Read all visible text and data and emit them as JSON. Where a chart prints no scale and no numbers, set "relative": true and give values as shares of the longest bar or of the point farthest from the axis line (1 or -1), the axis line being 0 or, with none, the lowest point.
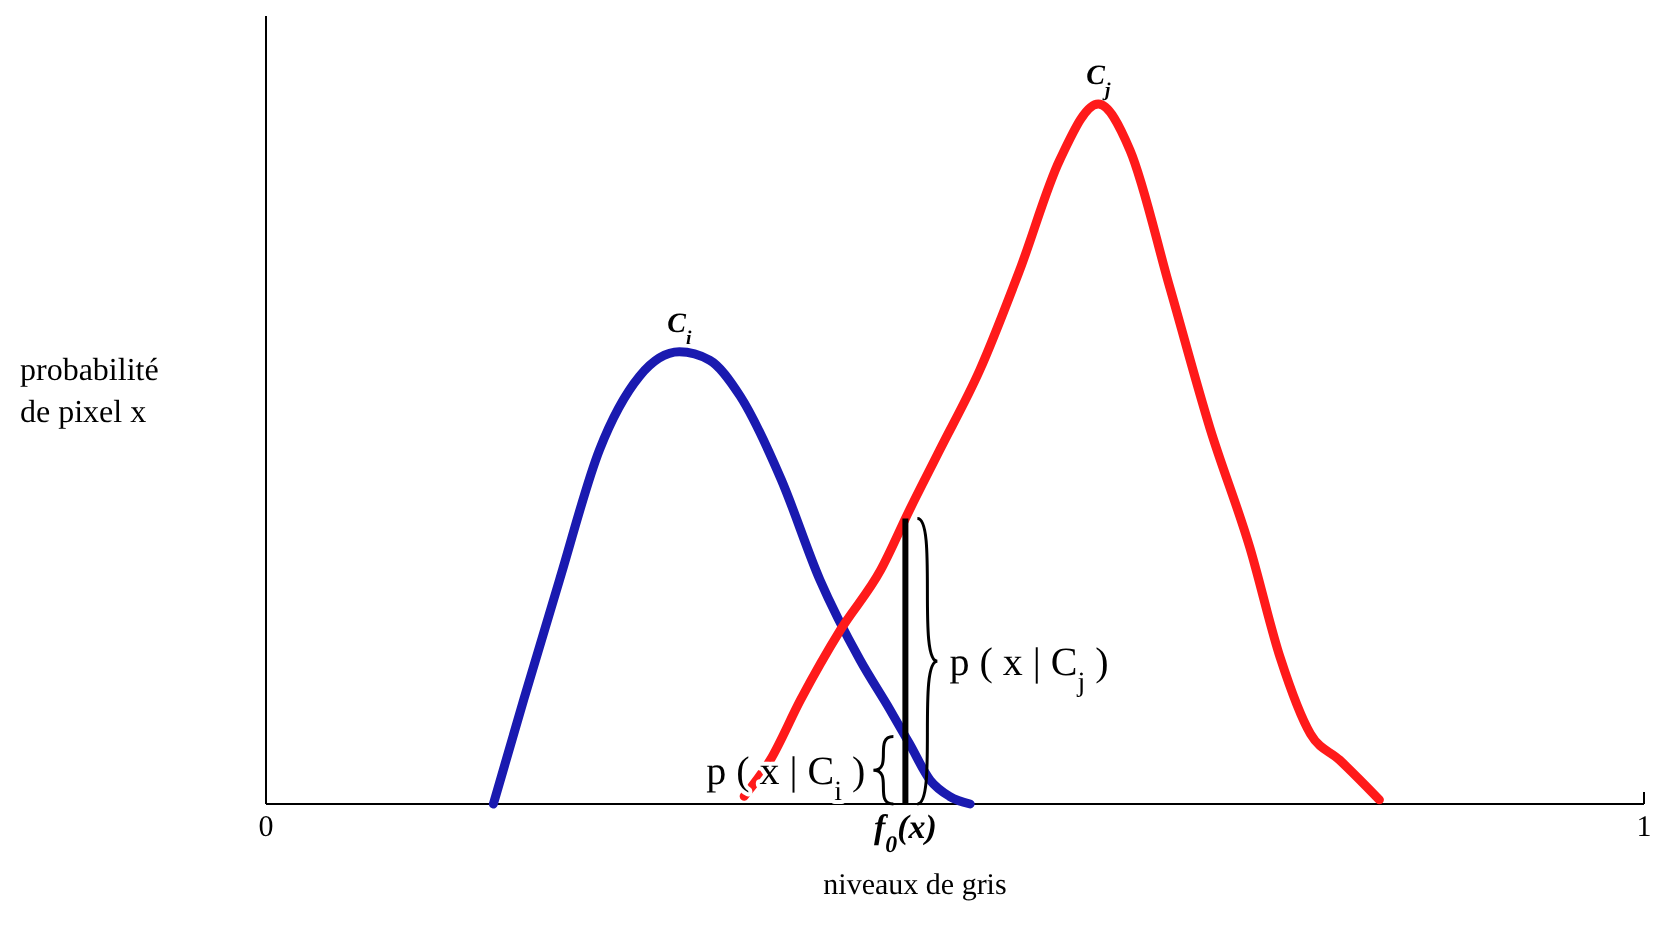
{
  "chart_data": {
    "type": "line",
    "relative": true,
    "xlabel": "niveaux de gris",
    "ylabel": "probabilité de pixel x",
    "xlim": [
      0,
      1
    ],
    "xticks": [
      0,
      1
    ],
    "grid": false,
    "marker": "none",
    "line_style": "solid",
    "series": [
      {
        "name": "C$_{i}$",
        "color": "#1a1ab0",
        "x": [
          0.165,
          0.187,
          0.213,
          0.242,
          0.271,
          0.3,
          0.322,
          0.344,
          0.374,
          0.402,
          0.431,
          0.453,
          0.467,
          0.482,
          0.496,
          0.511
        ],
        "values": [
          0,
          0.149,
          0.32,
          0.506,
          0.611,
          0.646,
          0.634,
          0.583,
          0.463,
          0.32,
          0.206,
          0.134,
          0.086,
          0.034,
          0.011,
          0
        ]
      },
      {
        "name": "C$_{j}$",
        "color": "#ff1a1a",
        "x": [
          0.347,
          0.366,
          0.388,
          0.417,
          0.446,
          0.467,
          0.489,
          0.518,
          0.547,
          0.576,
          0.604,
          0.627,
          0.656,
          0.685,
          0.714,
          0.736,
          0.758,
          0.779,
          0.808
        ],
        "values": [
          0.011,
          0.063,
          0.149,
          0.249,
          0.334,
          0.42,
          0.506,
          0.62,
          0.763,
          0.92,
          1,
          0.934,
          0.737,
          0.537,
          0.366,
          0.209,
          0.1,
          0.063,
          0.006
        ]
      }
    ],
    "ref_lines": [
      {
        "axis": "x",
        "value": 0.464,
        "label": "f$_{0}$(x)",
        "color": "#000000"
      }
    ],
    "annotations": [
      "p ( x | C$_{j}$ )",
      "p ( x | C$_{i}$ )"
    ]
  }
}
